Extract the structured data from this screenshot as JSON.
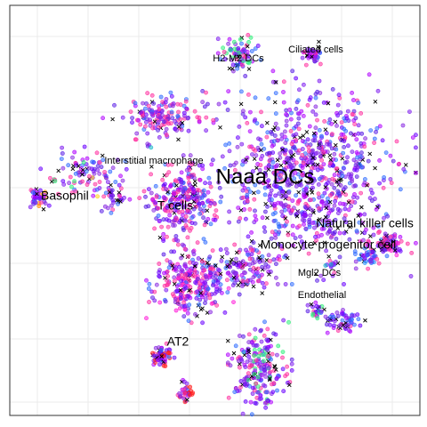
{
  "chart_data": {
    "type": "scatter",
    "title": "",
    "xlabel": "",
    "ylabel": "",
    "grid": true,
    "legend": "none",
    "point_colors": [
      "#6a00ff",
      "#7d1cf0",
      "#8a2be2",
      "#5a1ee6",
      "#b000ff",
      "#ff2fa0",
      "#2f6bff"
    ],
    "cross_color": "#000000",
    "clusters": [
      {
        "label": "Naaa DCs",
        "label_size": "large",
        "cx": 0.73,
        "cy": 0.42,
        "sx": 0.1,
        "sy": 0.1,
        "n": 900,
        "extra_colors": []
      },
      {
        "label": "T cells",
        "label_size": "medium",
        "cx": 0.42,
        "cy": 0.47,
        "sx": 0.04,
        "sy": 0.04,
        "n": 260,
        "extra_colors": [
          "#ff2fa0"
        ]
      },
      {
        "label": "H2-M2 DCs",
        "label_size": "small",
        "cx": 0.56,
        "cy": 0.12,
        "sx": 0.02,
        "sy": 0.022,
        "n": 80,
        "extra_colors": [
          "#2ef07a"
        ]
      },
      {
        "label": "Ciliated cells",
        "label_size": "small",
        "cx": 0.74,
        "cy": 0.12,
        "sx": 0.012,
        "sy": 0.012,
        "n": 45,
        "extra_colors": []
      },
      {
        "label": "",
        "label_size": "none",
        "cx": 0.37,
        "cy": 0.27,
        "sx": 0.055,
        "sy": 0.022,
        "n": 160,
        "extra_colors": [
          "#ff2fa0"
        ]
      },
      {
        "label": "Interstitial macrophage",
        "label_size": "small",
        "cx": 0.34,
        "cy": 0.345,
        "sx": 0.004,
        "sy": 0.004,
        "n": 4,
        "extra_colors": [
          "#16b8c8"
        ]
      },
      {
        "label": "",
        "label_size": "none",
        "cx": 0.19,
        "cy": 0.41,
        "sx": 0.045,
        "sy": 0.025,
        "n": 90,
        "extra_colors": [
          "#ff2fa0",
          "#2ef07a",
          "#ffd21a"
        ]
      },
      {
        "label": "Basophil",
        "label_size": "medium",
        "cx": 0.07,
        "cy": 0.47,
        "sx": 0.015,
        "sy": 0.012,
        "n": 40,
        "extra_colors": [
          "#ff8a00",
          "#2f6bff"
        ]
      },
      {
        "label": "",
        "label_size": "none",
        "cx": 0.25,
        "cy": 0.47,
        "sx": 0.018,
        "sy": 0.018,
        "n": 40,
        "extra_colors": []
      },
      {
        "label": "Natural killer cells",
        "label_size": "medium",
        "cx": 0.92,
        "cy": 0.58,
        "sx": 0.025,
        "sy": 0.012,
        "n": 90,
        "extra_colors": [
          "#ff1ad9",
          "#ff2fa0"
        ]
      },
      {
        "label": "Monocyte progenitor cell",
        "label_size": "medium",
        "cx": 0.87,
        "cy": 0.61,
        "sx": 0.012,
        "sy": 0.01,
        "n": 40,
        "extra_colors": [
          "#2f6bff",
          "#2e9bff"
        ]
      },
      {
        "label": "Mgl2 DCs",
        "label_size": "small",
        "cx": 0.79,
        "cy": 0.63,
        "sx": 0.008,
        "sy": 0.004,
        "n": 12,
        "extra_colors": [
          "#16b8c8",
          "#2f6bff"
        ]
      },
      {
        "label": "",
        "label_size": "none",
        "cx": 0.58,
        "cy": 0.64,
        "sx": 0.03,
        "sy": 0.025,
        "n": 110,
        "extra_colors": []
      },
      {
        "label": "",
        "label_size": "none",
        "cx": 0.45,
        "cy": 0.67,
        "sx": 0.045,
        "sy": 0.04,
        "n": 300,
        "extra_colors": [
          "#ff2fa0",
          "#ff1ad9"
        ]
      },
      {
        "label": "Endothelial",
        "label_size": "small",
        "cx": 0.75,
        "cy": 0.745,
        "sx": 0.009,
        "sy": 0.009,
        "n": 25,
        "extra_colors": [
          "#2ef07a"
        ]
      },
      {
        "label": "",
        "label_size": "none",
        "cx": 0.81,
        "cy": 0.77,
        "sx": 0.025,
        "sy": 0.012,
        "n": 60,
        "extra_colors": []
      },
      {
        "label": "AT2",
        "label_size": "medium",
        "cx": 0.37,
        "cy": 0.855,
        "sx": 0.012,
        "sy": 0.012,
        "n": 70,
        "extra_colors": [
          "#ff1a1a"
        ]
      },
      {
        "label": "",
        "label_size": "none",
        "cx": 0.43,
        "cy": 0.945,
        "sx": 0.008,
        "sy": 0.012,
        "n": 35,
        "extra_colors": [
          "#ff1a1a"
        ]
      },
      {
        "label": "",
        "label_size": "none",
        "cx": 0.61,
        "cy": 0.885,
        "sx": 0.03,
        "sy": 0.045,
        "n": 230,
        "extra_colors": [
          "#2ef07a",
          "#ff2fa0"
        ]
      }
    ]
  }
}
